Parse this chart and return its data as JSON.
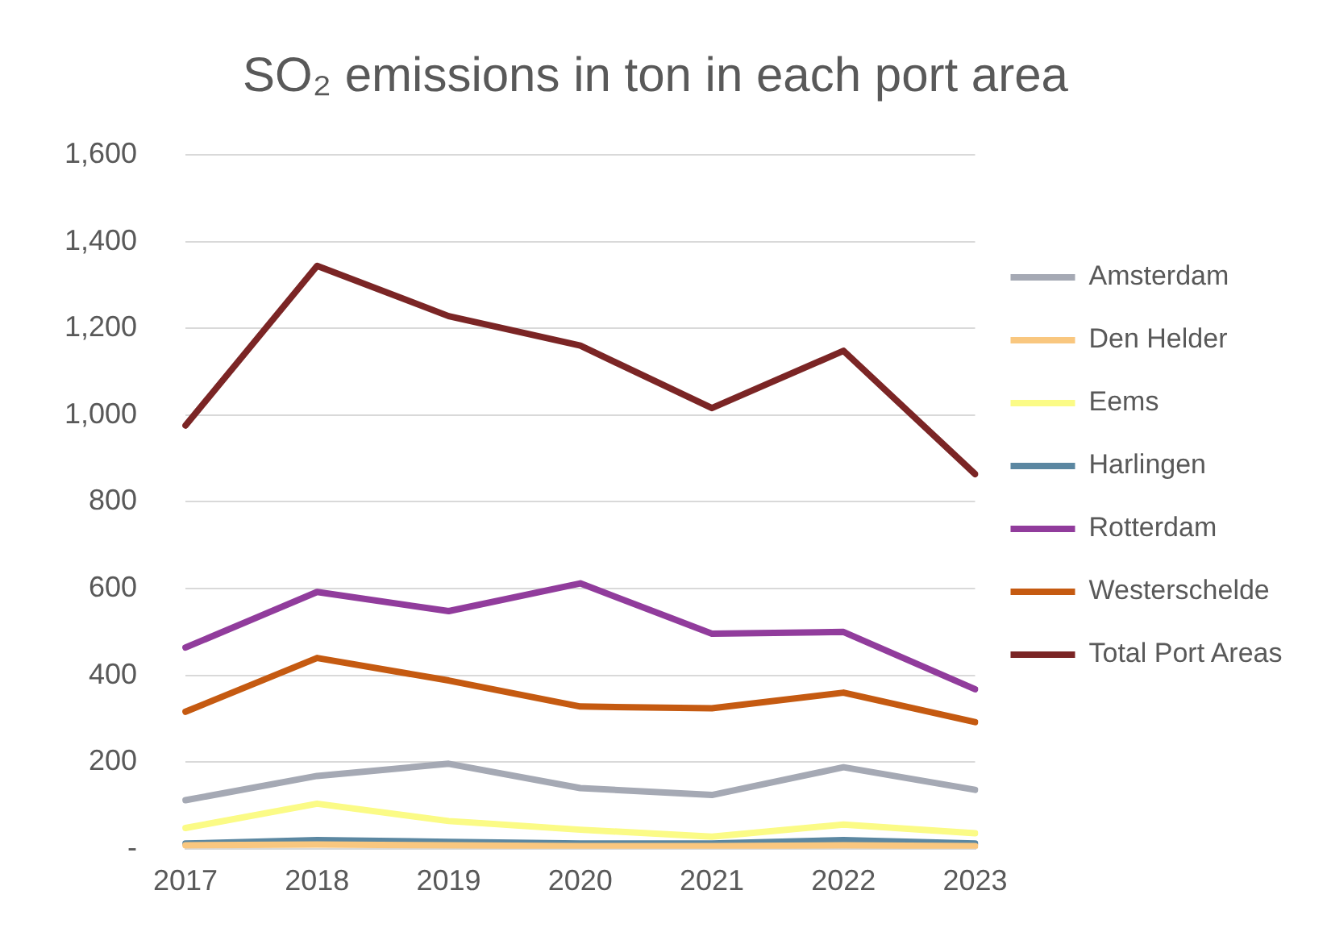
{
  "chart_data": {
    "type": "line",
    "title": "SO₂ emissions in ton in each port area",
    "categories": [
      "2017",
      "2018",
      "2019",
      "2020",
      "2021",
      "2022",
      "2023"
    ],
    "series": [
      {
        "name": "Amsterdam",
        "color": "#a5a9b4",
        "values": [
          112,
          168,
          196,
          140,
          124,
          188,
          136
        ]
      },
      {
        "name": "Den Helder",
        "color": "#f9c77f",
        "values": [
          8,
          10,
          8,
          6,
          6,
          8,
          6
        ]
      },
      {
        "name": "Eems",
        "color": "#fbfb86",
        "values": [
          48,
          104,
          64,
          44,
          28,
          56,
          36
        ]
      },
      {
        "name": "Harlingen",
        "color": "#5b87a1",
        "values": [
          12,
          20,
          16,
          12,
          12,
          20,
          12
        ]
      },
      {
        "name": "Rotterdam",
        "color": "#913c9c",
        "values": [
          464,
          592,
          548,
          612,
          496,
          500,
          368
        ]
      },
      {
        "name": "Westerschelde",
        "color": "#c55a11",
        "values": [
          316,
          440,
          388,
          328,
          324,
          360,
          292
        ]
      },
      {
        "name": "Total Port Areas",
        "color": "#7b2525",
        "values": [
          976,
          1344,
          1228,
          1160,
          1016,
          1148,
          864
        ]
      }
    ],
    "ylim": [
      0,
      1600
    ],
    "yticks": [
      {
        "value": 0,
        "label": "-"
      },
      {
        "value": 200,
        "label": "200"
      },
      {
        "value": 400,
        "label": "400"
      },
      {
        "value": 600,
        "label": "600"
      },
      {
        "value": 800,
        "label": "800"
      },
      {
        "value": 1000,
        "label": "1,000"
      },
      {
        "value": 1200,
        "label": "1,200"
      },
      {
        "value": 1400,
        "label": "1,400"
      },
      {
        "value": 1600,
        "label": "1,600"
      }
    ],
    "grid": "y",
    "legend": "right",
    "marker": "none",
    "line_style": "solid"
  }
}
